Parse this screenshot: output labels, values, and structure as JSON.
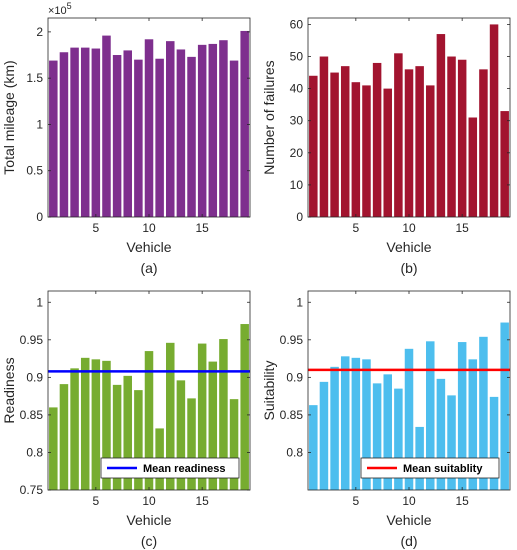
{
  "chart_data": [
    {
      "id": "a",
      "type": "bar",
      "caption": "(a)",
      "xlabel": "Vehicle",
      "ylabel": "Total mileage (km)",
      "y_exponent_label": "×10",
      "y_exponent_power": "5",
      "color": "#7E2F8E",
      "x": [
        1,
        2,
        3,
        4,
        5,
        6,
        7,
        8,
        9,
        10,
        11,
        12,
        13,
        14,
        15,
        16,
        17,
        18,
        19
      ],
      "values": [
        1.69,
        1.78,
        1.83,
        1.83,
        1.82,
        1.96,
        1.75,
        1.8,
        1.7,
        1.92,
        1.71,
        1.9,
        1.81,
        1.73,
        1.86,
        1.87,
        1.91,
        1.69,
        2.01
      ],
      "xlim": [
        0.5,
        19.5
      ],
      "ylim": [
        0,
        2.15
      ],
      "xticks": [
        5,
        10,
        15
      ],
      "yticks": [
        0,
        0.5,
        1,
        1.5,
        2
      ],
      "ytick_labels": [
        "0",
        "0.5",
        "1",
        "1.5",
        "2"
      ]
    },
    {
      "id": "b",
      "type": "bar",
      "caption": "(b)",
      "xlabel": "Vehicle",
      "ylabel": "Number of failures",
      "color": "#A2142F",
      "x": [
        1,
        2,
        3,
        4,
        5,
        6,
        7,
        8,
        9,
        10,
        11,
        12,
        13,
        14,
        15,
        16,
        17,
        18,
        19
      ],
      "values": [
        44,
        50,
        45,
        47,
        42,
        41,
        48,
        40,
        51,
        46,
        47,
        41,
        57,
        50,
        49,
        31,
        46,
        60,
        33
      ],
      "xlim": [
        0.5,
        19.5
      ],
      "ylim": [
        0,
        62
      ],
      "xticks": [
        5,
        10,
        15
      ],
      "yticks": [
        0,
        10,
        20,
        30,
        40,
        50,
        60
      ],
      "ytick_labels": [
        "0",
        "10",
        "20",
        "30",
        "40",
        "50",
        "60"
      ]
    },
    {
      "id": "c",
      "type": "bar",
      "caption": "(c)",
      "xlabel": "Vehicle",
      "ylabel": "Readiness",
      "color": "#77AC30",
      "x": [
        1,
        2,
        3,
        4,
        5,
        6,
        7,
        8,
        9,
        10,
        11,
        12,
        13,
        14,
        15,
        16,
        17,
        18,
        19
      ],
      "values": [
        0.86,
        0.891,
        0.912,
        0.926,
        0.924,
        0.922,
        0.89,
        0.902,
        0.883,
        0.935,
        0.832,
        0.946,
        0.896,
        0.872,
        0.945,
        0.921,
        0.951,
        0.871,
        0.971
      ],
      "xlim": [
        0.5,
        19.5
      ],
      "ylim": [
        0.75,
        1.015
      ],
      "xticks": [
        5,
        10,
        15
      ],
      "yticks": [
        0.75,
        0.8,
        0.85,
        0.9,
        0.95,
        1
      ],
      "ytick_labels": [
        "0.75",
        "0.8",
        "0.85",
        "0.9",
        "0.95",
        "1"
      ],
      "mean_line": {
        "value": 0.908,
        "color": "#0000FF",
        "legend": "Mean readiness"
      }
    },
    {
      "id": "d",
      "type": "bar",
      "caption": "(d)",
      "xlabel": "Vehicle",
      "ylabel": "Suitability",
      "color": "#4DBEEE",
      "x": [
        1,
        2,
        3,
        4,
        5,
        6,
        7,
        8,
        9,
        10,
        11,
        12,
        13,
        14,
        15,
        16,
        17,
        18,
        19
      ],
      "values": [
        0.863,
        0.894,
        0.914,
        0.928,
        0.926,
        0.924,
        0.892,
        0.904,
        0.885,
        0.938,
        0.834,
        0.948,
        0.898,
        0.876,
        0.947,
        0.924,
        0.954,
        0.874,
        0.973
      ],
      "xlim": [
        0.5,
        19.5
      ],
      "ylim": [
        0.75,
        1.015
      ],
      "xticks": [
        5,
        10,
        15
      ],
      "yticks": [
        0.8,
        0.85,
        0.9,
        0.95,
        1
      ],
      "ytick_labels": [
        "0.8",
        "0.85",
        "0.9",
        "0.95",
        "1"
      ],
      "mean_line": {
        "value": 0.91,
        "color": "#FF0000",
        "legend": "Mean suitablity"
      }
    }
  ]
}
